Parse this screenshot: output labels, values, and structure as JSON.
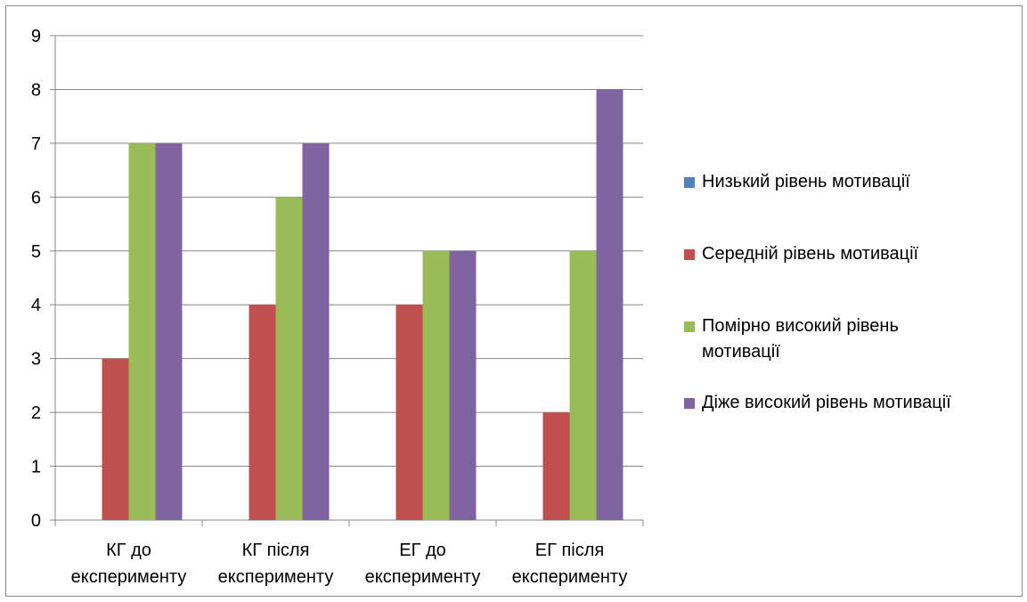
{
  "chart_data": {
    "type": "bar",
    "categories": [
      "КГ до експерименту",
      "КГ після експерименту",
      "ЕГ до експерименту",
      "ЕГ після експерименту"
    ],
    "category_lines": [
      [
        "КГ до",
        "експерименту"
      ],
      [
        "КГ після",
        "експерименту"
      ],
      [
        "ЕГ до",
        "експерименту"
      ],
      [
        "ЕГ після",
        "експерименту"
      ]
    ],
    "series": [
      {
        "name": "Низький рівень мотивації",
        "values": [
          0,
          0,
          0,
          0
        ],
        "color": "#4f81bd"
      },
      {
        "name": "Середній рівень мотивації",
        "values": [
          3,
          4,
          4,
          2
        ],
        "color": "#c0504d"
      },
      {
        "name": "Помірно високий рівень мотивації",
        "name_lines": [
          "Помірно високий рівень",
          "мотивації"
        ],
        "values": [
          7,
          6,
          5,
          5
        ],
        "color": "#9bbb59"
      },
      {
        "name": "Діже високий рівень мотивації",
        "values": [
          7,
          7,
          5,
          8
        ],
        "color": "#8064a2"
      }
    ],
    "yticks": [
      0,
      1,
      2,
      3,
      4,
      5,
      6,
      7,
      8,
      9
    ],
    "ylim": [
      0,
      9
    ],
    "grid": true,
    "legend_position": "right",
    "title": "",
    "xlabel": "",
    "ylabel": ""
  }
}
